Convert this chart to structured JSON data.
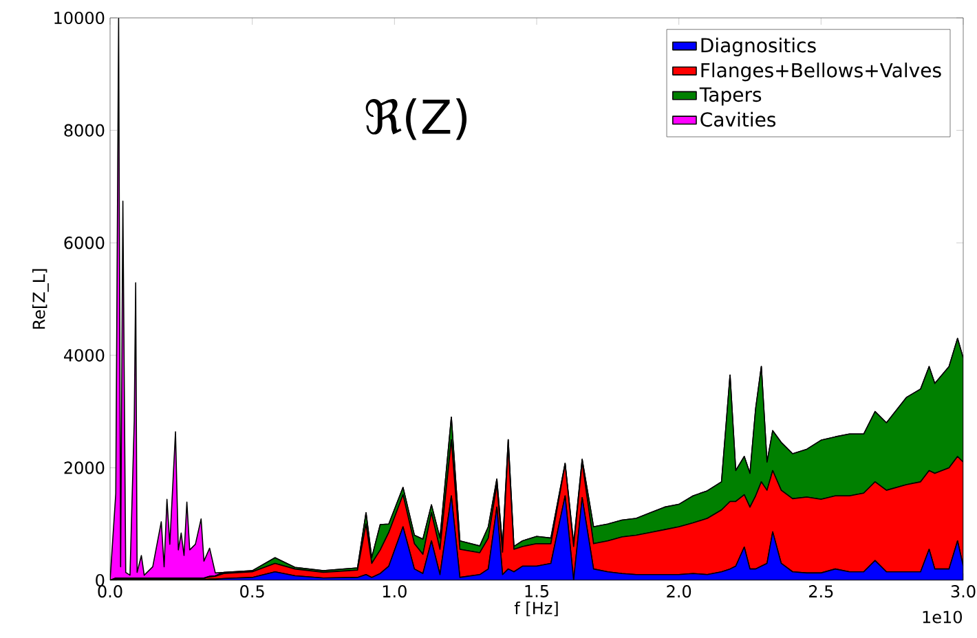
{
  "chart_data": {
    "type": "area",
    "stacked": true,
    "xlabel": "f [Hz]",
    "ylabel": "Re[Z_L]",
    "annotations": [
      "ℜ(Z)",
      "1e10"
    ],
    "x": [
      0,
      0.02,
      0.03,
      0.037,
      0.045,
      0.055,
      0.07,
      0.085,
      0.09,
      0.095,
      0.11,
      0.12,
      0.15,
      0.18,
      0.19,
      0.2,
      0.21,
      0.23,
      0.24,
      0.25,
      0.26,
      0.27,
      0.28,
      0.3,
      0.32,
      0.33,
      0.35,
      0.37,
      0.4,
      0.5,
      0.58,
      0.65,
      0.75,
      0.87,
      0.9,
      0.92,
      0.95,
      0.98,
      1.03,
      1.07,
      1.1,
      1.13,
      1.16,
      1.2,
      1.23,
      1.3,
      1.33,
      1.36,
      1.38,
      1.4,
      1.42,
      1.45,
      1.5,
      1.55,
      1.6,
      1.63,
      1.66,
      1.7,
      1.75,
      1.8,
      1.85,
      1.9,
      1.95,
      2.0,
      2.05,
      2.1,
      2.15,
      2.18,
      2.2,
      2.23,
      2.25,
      2.27,
      2.29,
      2.31,
      2.33,
      2.36,
      2.4,
      2.45,
      2.5,
      2.55,
      2.6,
      2.65,
      2.69,
      2.73,
      2.8,
      2.85,
      2.88,
      2.9,
      2.95,
      2.98,
      3.0
    ],
    "series": [
      {
        "name": "Diagnositics",
        "color": "#0000ff",
        "values": [
          0,
          10,
          10,
          10,
          10,
          10,
          10,
          10,
          10,
          10,
          10,
          10,
          10,
          10,
          10,
          10,
          10,
          10,
          10,
          10,
          10,
          10,
          10,
          10,
          10,
          10,
          20,
          20,
          30,
          50,
          150,
          80,
          40,
          50,
          100,
          50,
          120,
          250,
          950,
          200,
          120,
          700,
          100,
          1500,
          50,
          100,
          200,
          1300,
          100,
          200,
          150,
          250,
          250,
          300,
          1500,
          0,
          1470,
          200,
          150,
          120,
          100,
          100,
          100,
          100,
          120,
          100,
          150,
          200,
          250,
          590,
          200,
          200,
          250,
          300,
          860,
          300,
          150,
          130,
          130,
          200,
          150,
          150,
          350,
          150,
          150,
          150,
          550,
          200,
          200,
          700,
          250
        ]
      },
      {
        "name": "Flanges+Bellows+Valves",
        "color": "#ff0000",
        "values": [
          0,
          20,
          20,
          20,
          20,
          20,
          20,
          20,
          20,
          20,
          20,
          20,
          20,
          20,
          20,
          20,
          20,
          20,
          20,
          20,
          20,
          20,
          20,
          20,
          20,
          20,
          40,
          50,
          90,
          100,
          150,
          120,
          100,
          130,
          900,
          250,
          420,
          600,
          570,
          450,
          340,
          500,
          450,
          1000,
          500,
          390,
          550,
          400,
          400,
          2200,
          400,
          350,
          400,
          350,
          560,
          600,
          630,
          450,
          550,
          650,
          700,
          750,
          800,
          850,
          900,
          1000,
          1100,
          1200,
          1150,
          930,
          1100,
          1300,
          1500,
          1300,
          1090,
          1300,
          1300,
          1350,
          1310,
          1300,
          1350,
          1400,
          1400,
          1450,
          1550,
          1600,
          1400,
          1700,
          1800,
          1500,
          1850
        ]
      },
      {
        "name": "Tapers",
        "color": "#008000",
        "values": [
          0,
          10,
          10,
          10,
          10,
          10,
          10,
          10,
          10,
          10,
          10,
          10,
          10,
          10,
          10,
          10,
          10,
          10,
          10,
          10,
          10,
          10,
          10,
          10,
          10,
          10,
          10,
          10,
          20,
          20,
          100,
          30,
          30,
          40,
          200,
          100,
          450,
          150,
          130,
          150,
          270,
          140,
          200,
          400,
          150,
          120,
          200,
          100,
          100,
          100,
          50,
          100,
          130,
          100,
          20,
          50,
          50,
          300,
          300,
          300,
          300,
          350,
          400,
          400,
          480,
          490,
          500,
          2250,
          550,
          680,
          600,
          1550,
          2050,
          500,
          710,
          850,
          800,
          850,
          1050,
          1050,
          1100,
          1050,
          1250,
          1200,
          1550,
          1650,
          1850,
          1600,
          1800,
          2100,
          1850
        ]
      },
      {
        "name": "Cavities",
        "color": "#ff00ff",
        "values": [
          0,
          1500,
          9950,
          200,
          6700,
          100,
          50,
          2800,
          5250,
          100,
          400,
          50,
          200,
          1000,
          200,
          1400,
          600,
          2600,
          500,
          800,
          400,
          1350,
          500,
          600,
          1050,
          300,
          500,
          50,
          0,
          0,
          0,
          0,
          0,
          0,
          0,
          0,
          0,
          0,
          0,
          0,
          0,
          0,
          0,
          0,
          0,
          0,
          0,
          0,
          0,
          0,
          0,
          0,
          0,
          0,
          0,
          0,
          0,
          0,
          0,
          0,
          0,
          0,
          0,
          0,
          0,
          0,
          0,
          0,
          0,
          0,
          0,
          0,
          0,
          0,
          0,
          0,
          0,
          0,
          0,
          0,
          0,
          0,
          0,
          0,
          0,
          0,
          0,
          0,
          0,
          0,
          0
        ]
      }
    ],
    "xlim": [
      0,
      3.0
    ],
    "ylim": [
      0,
      10000
    ],
    "xticks": [
      {
        "value": 0,
        "label": "0.0"
      },
      0.5,
      {
        "value": 1,
        "label": "1.0"
      },
      1.5,
      {
        "value": 2,
        "label": "2.0"
      },
      2.5,
      {
        "value": 3,
        "label": "3.0"
      }
    ],
    "yticks": [
      0,
      2000,
      4000,
      6000,
      8000,
      10000
    ],
    "legend": "top right",
    "grid": false
  }
}
